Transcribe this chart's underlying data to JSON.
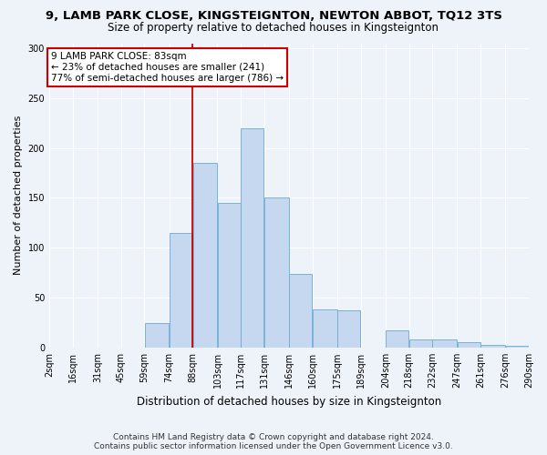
{
  "title": "9, LAMB PARK CLOSE, KINGSTEIGNTON, NEWTON ABBOT, TQ12 3TS",
  "subtitle": "Size of property relative to detached houses in Kingsteignton",
  "xlabel": "Distribution of detached houses by size in Kingsteignton",
  "ylabel": "Number of detached properties",
  "bin_labels": [
    "2sqm",
    "16sqm",
    "31sqm",
    "45sqm",
    "59sqm",
    "74sqm",
    "88sqm",
    "103sqm",
    "117sqm",
    "131sqm",
    "146sqm",
    "160sqm",
    "175sqm",
    "189sqm",
    "204sqm",
    "218sqm",
    "232sqm",
    "247sqm",
    "261sqm",
    "276sqm",
    "290sqm"
  ],
  "bar_values": [
    0,
    0,
    0,
    0,
    25,
    115,
    185,
    145,
    220,
    150,
    74,
    38,
    37,
    0,
    17,
    8,
    8,
    5,
    3,
    2,
    0
  ],
  "bar_color": "#c5d8f0",
  "bar_edge_color": "#6aaad4",
  "vline_x_index": 6,
  "vline_color": "#cc0000",
  "annotation_text": "9 LAMB PARK CLOSE: 83sqm\n← 23% of detached houses are smaller (241)\n77% of semi-detached houses are larger (786) →",
  "annotation_box_color": "white",
  "annotation_box_edge_color": "#cc0000",
  "ylim": [
    0,
    305
  ],
  "yticks": [
    0,
    50,
    100,
    150,
    200,
    250,
    300
  ],
  "footer1": "Contains HM Land Registry data © Crown copyright and database right 2024.",
  "footer2": "Contains public sector information licensed under the Open Government Licence v3.0.",
  "title_fontsize": 9.5,
  "subtitle_fontsize": 8.5,
  "xlabel_fontsize": 8.5,
  "ylabel_fontsize": 8,
  "tick_fontsize": 7,
  "annotation_fontsize": 7.5,
  "footer_fontsize": 6.5,
  "bg_color": "#eef3f9",
  "grid_color": "white"
}
